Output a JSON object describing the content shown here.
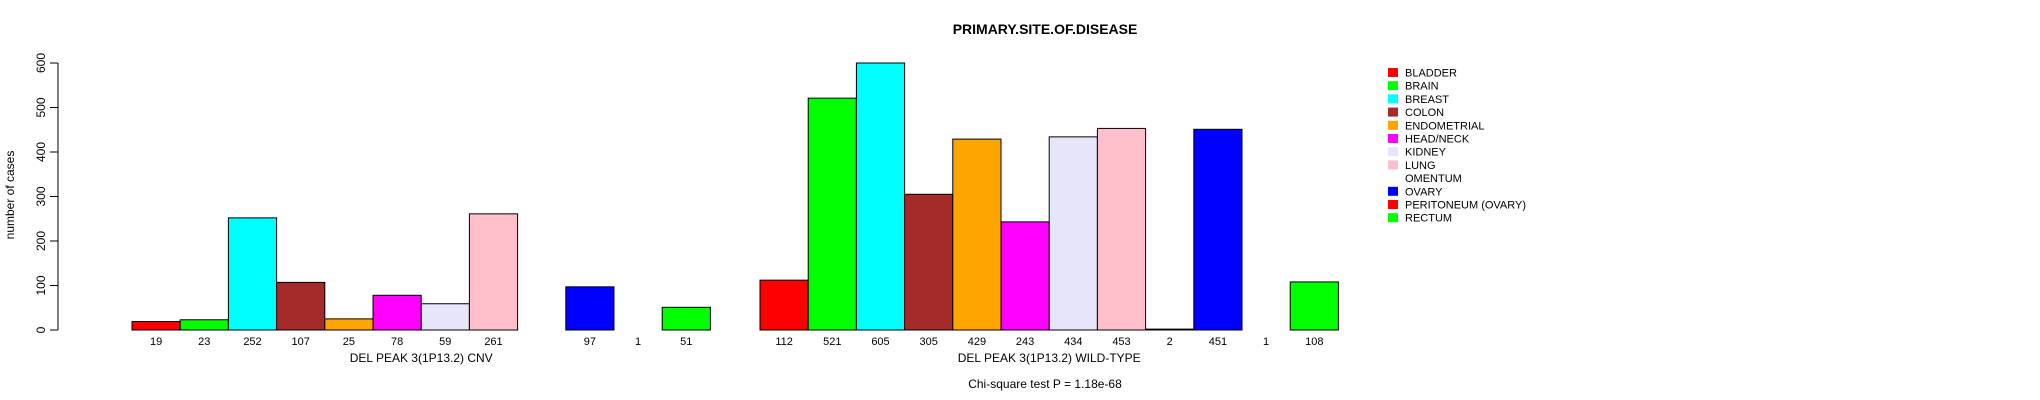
{
  "chart_data": {
    "type": "bar",
    "title": "PRIMARY.SITE.OF.DISEASE",
    "ylabel": "number of cases",
    "ylim": [
      0,
      600
    ],
    "yticks": [
      0,
      100,
      200,
      300,
      400,
      500,
      600
    ],
    "categories": [
      "BLADDER",
      "BRAIN",
      "BREAST",
      "COLON",
      "ENDOMETRIAL",
      "HEAD/NECK",
      "KIDNEY",
      "LUNG",
      "OMENTUM",
      "OVARY",
      "PERITONEUM (OVARY)",
      "RECTUM"
    ],
    "colors": [
      "#FF0000",
      "#00FF00",
      "#00FFFF",
      "#A52A2A",
      "#FFA500",
      "#FF00FF",
      "#E6E6FA",
      "#FFC0CB",
      "#FFFFFF",
      "#0000FF",
      "#FF0000",
      "#00FF00"
    ],
    "series": [
      {
        "name": "DEL PEAK  3(1P13.2) CNV",
        "values": [
          19,
          23,
          252,
          107,
          25,
          78,
          59,
          261,
          0,
          97,
          1,
          51
        ]
      },
      {
        "name": "DEL PEAK  3(1P13.2) WILD-TYPE",
        "values": [
          112,
          521,
          605,
          305,
          429,
          243,
          434,
          453,
          2,
          451,
          1,
          108
        ]
      }
    ],
    "count_labels": [
      [
        "19",
        "23",
        "252",
        "107",
        "25",
        "78",
        "59",
        "261",
        "",
        "97",
        "1",
        "51"
      ],
      [
        "112",
        "521",
        "605",
        "305",
        "429",
        "243",
        "434",
        "453",
        "2",
        "451",
        "1",
        "108"
      ]
    ],
    "legend_position": "top-right",
    "footnote": "Chi-square test P = 1.18e-68"
  }
}
